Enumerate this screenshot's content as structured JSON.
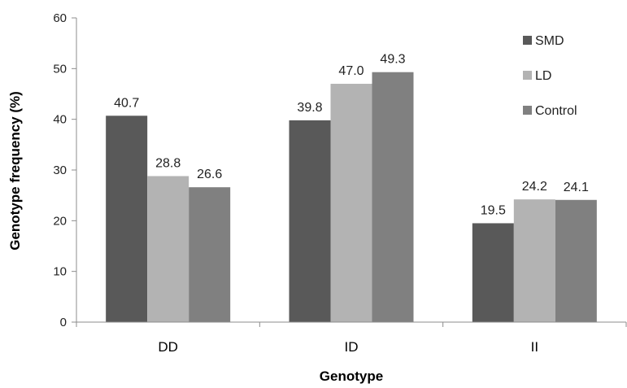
{
  "chart_data": {
    "type": "bar",
    "title": "",
    "xlabel": "Genotype",
    "ylabel": "Genotype frequency (%)",
    "ylim": [
      0,
      60
    ],
    "yticks": [
      "0",
      "10",
      "20",
      "30",
      "40",
      "50",
      "60"
    ],
    "categories": [
      "DD",
      "ID",
      "II"
    ],
    "series": [
      {
        "name": "SMD",
        "values": [
          40.7,
          39.8,
          19.5
        ],
        "labels": [
          "40.7",
          "39.8",
          "19.5"
        ],
        "color": "#595959"
      },
      {
        "name": "LD",
        "values": [
          28.8,
          47.0,
          24.2
        ],
        "labels": [
          "28.8",
          "47.0",
          "24.2"
        ],
        "color": "#b3b3b3"
      },
      {
        "name": "Control",
        "values": [
          26.6,
          49.3,
          24.1
        ],
        "labels": [
          "26.6",
          "49.3",
          "24.1"
        ],
        "color": "#808080"
      }
    ],
    "grid": false,
    "legend": "right"
  }
}
